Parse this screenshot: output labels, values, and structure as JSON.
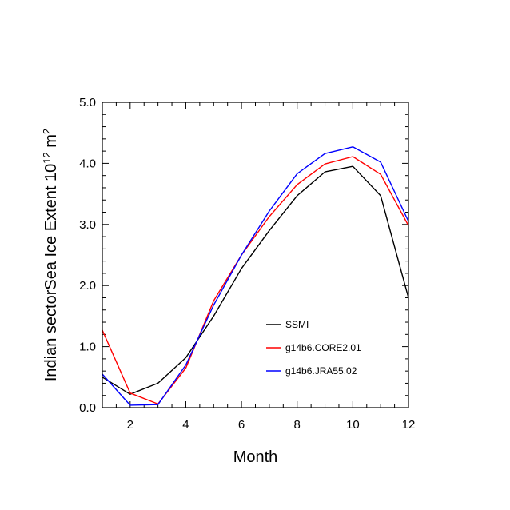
{
  "chart_data": {
    "type": "line",
    "title": "",
    "xlabel": "Month",
    "ylabel": {
      "prefix": "Indian sectorSea Ice Extent 10",
      "superscript1": "12",
      "middle": " m",
      "superscript2": "2"
    },
    "xlim": [
      1,
      12
    ],
    "ylim": [
      0,
      5
    ],
    "x_ticks": [
      2,
      4,
      6,
      8,
      10,
      12
    ],
    "x_tick_labels": [
      "2",
      "4",
      "6",
      "8",
      "10",
      "12"
    ],
    "y_ticks": [
      0,
      1,
      2,
      3,
      4,
      5
    ],
    "y_tick_labels": [
      "0.0",
      "1.0",
      "2.0",
      "3.0",
      "4.0",
      "5.0"
    ],
    "x": [
      1,
      2,
      3,
      4,
      5,
      6,
      7,
      8,
      9,
      10,
      11,
      12
    ],
    "series": [
      {
        "name": "SSMI",
        "color": "#000000",
        "values": [
          0.5,
          0.22,
          0.4,
          0.82,
          1.5,
          2.28,
          2.9,
          3.47,
          3.86,
          3.95,
          3.47,
          1.8
        ]
      },
      {
        "name": "g14b6.CORE2.01",
        "color": "#ff0000",
        "values": [
          1.27,
          0.24,
          0.06,
          0.65,
          1.75,
          2.5,
          3.13,
          3.65,
          3.99,
          4.11,
          3.82,
          2.98
        ]
      },
      {
        "name": "g14b6.JRA55.02",
        "color": "#0000ff",
        "values": [
          0.55,
          0.04,
          0.05,
          0.7,
          1.68,
          2.5,
          3.22,
          3.83,
          4.16,
          4.27,
          4.02,
          3.05
        ]
      }
    ],
    "legend_position": "lower-right"
  }
}
